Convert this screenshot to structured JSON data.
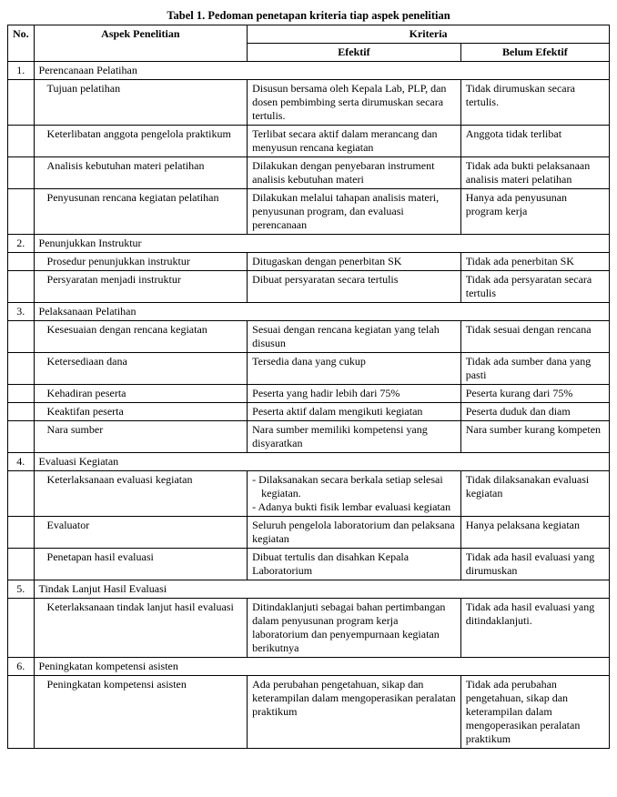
{
  "caption": "Tabel 1. Pedoman penetapan kriteria tiap aspek penelitian",
  "headers": {
    "no": "No.",
    "aspek": "Aspek Penelitian",
    "kriteria": "Kriteria",
    "efektif": "Efektif",
    "belum": "Belum Efektif"
  },
  "sections": [
    {
      "num": "1.",
      "title": "Perencanaan Pelatihan",
      "rows": [
        {
          "aspek": "Tujuan pelatihan",
          "efektif": "Disusun bersama oleh Kepala Lab, PLP, dan dosen pembimbing serta dirumuskan secara tertulis.",
          "belum": "Tidak dirumuskan secara tertulis."
        },
        {
          "aspek": "Keterlibatan anggota pengelola praktikum",
          "efektif": "Terlibat secara aktif dalam merancang dan menyusun rencana kegiatan",
          "belum": "Anggota tidak terlibat"
        },
        {
          "aspek": "Analisis kebutuhan materi pelatihan",
          "efektif": "Dilakukan dengan penyebaran instrument analisis kebutuhan materi",
          "belum": "Tidak ada bukti pelaksanaan analisis materi pelatihan"
        },
        {
          "aspek": "Penyusunan rencana kegiatan pelatihan",
          "efektif": "Dilakukan melalui tahapan analisis materi, penyusunan program, dan evaluasi perencanaan",
          "belum": "Hanya ada penyusunan program kerja"
        }
      ]
    },
    {
      "num": "2.",
      "title": "Penunjukkan Instruktur",
      "rows": [
        {
          "aspek": "Prosedur penunjukkan instruktur",
          "efektif": "Ditugaskan dengan penerbitan SK",
          "belum": "Tidak ada penerbitan SK"
        },
        {
          "aspek": "Persyaratan menjadi instruktur",
          "efektif": "Dibuat persyaratan secara tertulis",
          "belum": "Tidak ada persyaratan secara tertulis"
        }
      ]
    },
    {
      "num": "3.",
      "title": "Pelaksanaan Pelatihan",
      "rows": [
        {
          "aspek": "Kesesuaian dengan rencana kegiatan",
          "efektif": "Sesuai dengan rencana kegiatan yang telah disusun",
          "belum": "Tidak sesuai dengan rencana"
        },
        {
          "aspek": "Ketersediaan dana",
          "efektif": "Tersedia dana yang cukup",
          "belum": "Tidak ada sumber    dana yang pasti"
        },
        {
          "aspek": "Kehadiran peserta",
          "efektif": "Peserta yang hadir lebih dari 75%",
          "belum": "Peserta kurang dari 75%"
        },
        {
          "aspek": "Keaktifan peserta",
          "efektif": "Peserta aktif dalam mengikuti kegiatan",
          "belum": "Peserta duduk dan diam"
        },
        {
          "aspek": "Nara sumber",
          "efektif": "Nara sumber memiliki kompetensi yang disyaratkan",
          "belum": "Nara sumber kurang kompeten"
        }
      ]
    },
    {
      "num": "4.",
      "title": "Evaluasi Kegiatan",
      "rows": [
        {
          "aspek": "Keterlaksanaan evaluasi kegiatan",
          "efektif_list": [
            "-  Dilaksanakan secara berkala setiap selesai kegiatan.",
            "-  Adanya bukti fisik lembar evaluasi kegiatan"
          ],
          "belum": "Tidak dilaksanakan evaluasi kegiatan"
        },
        {
          "aspek": "Evaluator",
          "efektif": "Seluruh pengelola laboratorium dan pelaksana kegiatan",
          "belum": "Hanya pelaksana kegiatan"
        },
        {
          "aspek": "Penetapan hasil evaluasi",
          "efektif": "Dibuat tertulis dan disahkan Kepala Laboratorium",
          "belum": "Tidak ada hasil evaluasi yang dirumuskan"
        }
      ]
    },
    {
      "num": "5.",
      "title": "Tindak Lanjut Hasil Evaluasi",
      "rows": [
        {
          "aspek": "Keterlaksanaan tindak lanjut hasil evaluasi",
          "efektif": "Ditindaklanjuti sebagai bahan pertimbangan dalam penyusunan program kerja laboratorium dan penyempurnaan kegiatan berikutnya",
          "belum": "Tidak ada hasil evaluasi yang ditindaklanjuti."
        }
      ]
    },
    {
      "num": "6.",
      "title": "Peningkatan kompetensi asisten",
      "rows": [
        {
          "aspek": "Peningkatan kompetensi asisten",
          "efektif": "Ada perubahan pengetahuan, sikap dan keterampilan dalam mengoperasikan peralatan praktikum",
          "belum": "Tidak ada perubahan pengetahuan, sikap dan keterampilan dalam mengoperasikan peralatan praktikum"
        }
      ]
    }
  ]
}
